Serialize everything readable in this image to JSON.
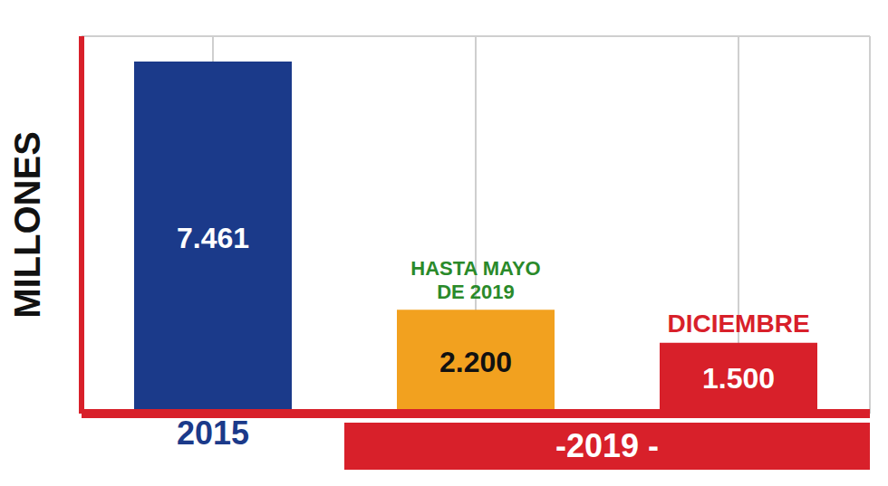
{
  "chart_data": {
    "type": "bar",
    "ylabel": "MILLONES",
    "categories": [
      "2015",
      null,
      null
    ],
    "values": [
      7461,
      2200,
      1500
    ],
    "value_labels": [
      "7.461",
      "2.200",
      "1.500"
    ],
    "data_labels": true,
    "colors": [
      "#1b3a8a",
      "#f2a11f",
      "#d8202a"
    ],
    "annotations": [
      null,
      "HASTA MAYO DE 2019",
      "DICIEMBRE"
    ],
    "group_label": "-2019 -",
    "ylim": [
      0,
      8000
    ],
    "yticks": [
      0,
      2000,
      4000,
      6000,
      8000
    ],
    "grid": true,
    "tick_labels": "x"
  }
}
